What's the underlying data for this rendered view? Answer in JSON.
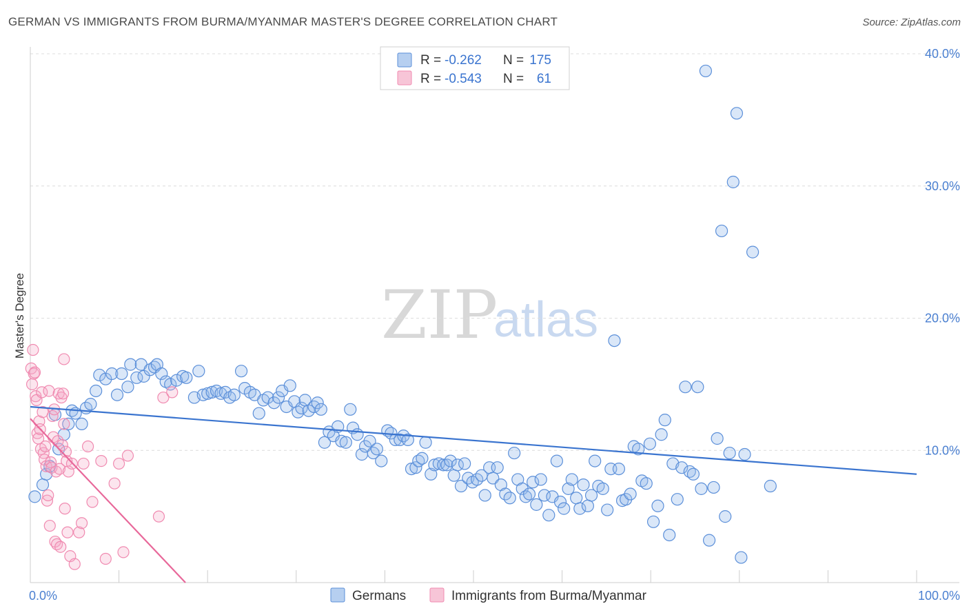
{
  "title": "GERMAN VS IMMIGRANTS FROM BURMA/MYANMAR MASTER'S DEGREE CORRELATION CHART",
  "source": "Source: ZipAtlas.com",
  "watermark": {
    "zip": "ZIP",
    "atlas": "atlas"
  },
  "legend": {
    "r_label": "R =",
    "n_label": "N =",
    "rows": [
      {
        "r": "-0.262",
        "n": "175"
      },
      {
        "r": "-0.543",
        "n": "61"
      }
    ]
  },
  "chart_data": {
    "type": "scatter",
    "title": "GERMAN VS IMMIGRANTS FROM BURMA/MYANMAR MASTER'S DEGREE CORRELATION CHART",
    "xlabel": "",
    "ylabel": "Master's Degree",
    "xlim": [
      0,
      100
    ],
    "ylim": [
      0,
      40
    ],
    "x_tick_labels": [
      "0.0%",
      "100.0%"
    ],
    "y_ticks": [
      10,
      20,
      30,
      40
    ],
    "y_tick_labels": [
      "10.0%",
      "20.0%",
      "30.0%",
      "40.0%"
    ],
    "grid": true,
    "legend_position": "top-center",
    "colors": {
      "germans": "#5b8fd9",
      "burma": "#f08ab0",
      "germans_line": "#3a74cf",
      "burma_line": "#e8689a"
    },
    "series": [
      {
        "name": "Germans",
        "r": -0.262,
        "n": 175,
        "trend": {
          "x": [
            0,
            100
          ],
          "y": [
            13.3,
            8.2
          ]
        },
        "points": [
          [
            0.5,
            6.5
          ],
          [
            1.4,
            7.4
          ],
          [
            1.8,
            8.2
          ],
          [
            2.2,
            8.8
          ],
          [
            2.8,
            12.7
          ],
          [
            3.2,
            10.1
          ],
          [
            3.8,
            11.2
          ],
          [
            4.3,
            12.0
          ],
          [
            4.7,
            13.0
          ],
          [
            5.1,
            12.8
          ],
          [
            5.8,
            12.0
          ],
          [
            6.3,
            13.2
          ],
          [
            6.8,
            13.5
          ],
          [
            7.4,
            14.5
          ],
          [
            7.8,
            15.7
          ],
          [
            8.5,
            15.4
          ],
          [
            9.2,
            15.8
          ],
          [
            9.8,
            14.2
          ],
          [
            10.3,
            15.8
          ],
          [
            11.0,
            14.8
          ],
          [
            11.3,
            16.5
          ],
          [
            12.0,
            15.5
          ],
          [
            12.5,
            16.5
          ],
          [
            12.8,
            15.6
          ],
          [
            13.5,
            16.1
          ],
          [
            14.0,
            16.3
          ],
          [
            14.3,
            16.5
          ],
          [
            14.8,
            15.8
          ],
          [
            15.3,
            15.2
          ],
          [
            15.8,
            15.0
          ],
          [
            16.5,
            15.3
          ],
          [
            17.2,
            15.6
          ],
          [
            17.6,
            15.5
          ],
          [
            18.5,
            14.0
          ],
          [
            19.0,
            16.0
          ],
          [
            19.5,
            14.2
          ],
          [
            20.0,
            14.3
          ],
          [
            20.5,
            14.4
          ],
          [
            21.0,
            14.5
          ],
          [
            21.5,
            14.3
          ],
          [
            22.0,
            14.4
          ],
          [
            22.5,
            14.0
          ],
          [
            23.0,
            14.2
          ],
          [
            23.8,
            16.0
          ],
          [
            24.2,
            14.7
          ],
          [
            24.8,
            14.4
          ],
          [
            25.3,
            14.2
          ],
          [
            25.8,
            12.8
          ],
          [
            26.3,
            13.8
          ],
          [
            26.8,
            14.0
          ],
          [
            27.5,
            13.6
          ],
          [
            28.0,
            14.0
          ],
          [
            28.4,
            14.5
          ],
          [
            28.9,
            13.3
          ],
          [
            29.3,
            14.9
          ],
          [
            29.8,
            13.7
          ],
          [
            30.2,
            12.9
          ],
          [
            30.6,
            13.2
          ],
          [
            31.0,
            13.8
          ],
          [
            31.4,
            13.0
          ],
          [
            32.0,
            13.3
          ],
          [
            32.4,
            13.6
          ],
          [
            32.8,
            13.1
          ],
          [
            33.2,
            10.6
          ],
          [
            33.7,
            11.4
          ],
          [
            34.2,
            11.1
          ],
          [
            34.7,
            11.8
          ],
          [
            35.1,
            10.7
          ],
          [
            35.6,
            10.6
          ],
          [
            36.1,
            13.1
          ],
          [
            36.4,
            11.7
          ],
          [
            36.9,
            11.2
          ],
          [
            37.4,
            9.7
          ],
          [
            37.8,
            10.3
          ],
          [
            38.3,
            10.7
          ],
          [
            38.7,
            9.8
          ],
          [
            39.1,
            10.1
          ],
          [
            39.6,
            9.2
          ],
          [
            40.3,
            11.5
          ],
          [
            40.7,
            11.3
          ],
          [
            41.2,
            10.8
          ],
          [
            41.7,
            10.8
          ],
          [
            42.1,
            11.1
          ],
          [
            42.6,
            10.8
          ],
          [
            43.0,
            8.6
          ],
          [
            43.5,
            8.7
          ],
          [
            43.8,
            9.2
          ],
          [
            44.2,
            9.4
          ],
          [
            44.6,
            10.6
          ],
          [
            45.2,
            8.2
          ],
          [
            45.6,
            8.9
          ],
          [
            46.1,
            9.0
          ],
          [
            46.6,
            8.9
          ],
          [
            47.0,
            8.9
          ],
          [
            47.4,
            9.2
          ],
          [
            47.8,
            8.1
          ],
          [
            48.2,
            8.9
          ],
          [
            48.6,
            7.3
          ],
          [
            49.0,
            9.0
          ],
          [
            49.4,
            7.9
          ],
          [
            49.9,
            7.6
          ],
          [
            50.4,
            7.8
          ],
          [
            50.9,
            8.1
          ],
          [
            51.3,
            6.6
          ],
          [
            51.8,
            8.7
          ],
          [
            52.2,
            7.9
          ],
          [
            52.7,
            8.7
          ],
          [
            53.1,
            7.4
          ],
          [
            53.6,
            6.7
          ],
          [
            54.1,
            6.4
          ],
          [
            54.6,
            9.8
          ],
          [
            55.0,
            7.8
          ],
          [
            55.5,
            7.1
          ],
          [
            55.9,
            6.5
          ],
          [
            56.3,
            6.7
          ],
          [
            56.7,
            7.6
          ],
          [
            57.1,
            5.9
          ],
          [
            57.6,
            7.8
          ],
          [
            58.0,
            6.6
          ],
          [
            58.5,
            5.1
          ],
          [
            58.9,
            6.5
          ],
          [
            59.4,
            9.2
          ],
          [
            59.8,
            6.1
          ],
          [
            60.2,
            5.6
          ],
          [
            60.7,
            7.1
          ],
          [
            61.1,
            7.8
          ],
          [
            61.6,
            6.4
          ],
          [
            62.0,
            5.6
          ],
          [
            62.4,
            7.4
          ],
          [
            62.9,
            5.8
          ],
          [
            63.3,
            6.6
          ],
          [
            63.7,
            9.2
          ],
          [
            64.1,
            7.3
          ],
          [
            64.6,
            7.1
          ],
          [
            65.1,
            5.5
          ],
          [
            65.5,
            8.6
          ],
          [
            65.9,
            18.3
          ],
          [
            66.4,
            8.6
          ],
          [
            66.8,
            6.2
          ],
          [
            67.2,
            6.3
          ],
          [
            67.7,
            6.7
          ],
          [
            68.1,
            10.3
          ],
          [
            68.6,
            10.1
          ],
          [
            69.0,
            7.7
          ],
          [
            69.5,
            7.5
          ],
          [
            69.9,
            10.5
          ],
          [
            70.3,
            4.6
          ],
          [
            70.8,
            5.8
          ],
          [
            71.2,
            11.2
          ],
          [
            71.6,
            12.3
          ],
          [
            72.1,
            3.6
          ],
          [
            72.5,
            9.0
          ],
          [
            73.0,
            6.3
          ],
          [
            73.5,
            8.7
          ],
          [
            73.9,
            14.8
          ],
          [
            74.4,
            8.4
          ],
          [
            74.8,
            8.2
          ],
          [
            75.3,
            14.8
          ],
          [
            75.7,
            7.1
          ],
          [
            76.2,
            38.7
          ],
          [
            76.6,
            3.2
          ],
          [
            77.1,
            7.2
          ],
          [
            77.5,
            10.9
          ],
          [
            78.0,
            26.6
          ],
          [
            78.4,
            5.0
          ],
          [
            78.9,
            9.8
          ],
          [
            79.3,
            30.3
          ],
          [
            79.7,
            35.5
          ],
          [
            80.2,
            1.9
          ],
          [
            80.6,
            9.7
          ],
          [
            81.5,
            25.0
          ],
          [
            83.5,
            7.3
          ]
        ]
      },
      {
        "name": "Immigrants from Burma/Myanmar",
        "r": -0.543,
        "n": 61,
        "trend": {
          "x": [
            0,
            17.5
          ],
          "y": [
            12.4,
            0
          ]
        },
        "points": [
          [
            0.1,
            16.2
          ],
          [
            0.2,
            15.0
          ],
          [
            0.3,
            17.6
          ],
          [
            0.4,
            15.8
          ],
          [
            0.5,
            15.9
          ],
          [
            0.6,
            14.1
          ],
          [
            0.7,
            13.8
          ],
          [
            0.8,
            11.3
          ],
          [
            0.9,
            10.9
          ],
          [
            1.0,
            12.2
          ],
          [
            1.1,
            11.6
          ],
          [
            1.2,
            10.1
          ],
          [
            1.3,
            14.4
          ],
          [
            1.4,
            12.9
          ],
          [
            1.5,
            9.8
          ],
          [
            1.6,
            9.3
          ],
          [
            1.7,
            10.3
          ],
          [
            1.8,
            8.8
          ],
          [
            1.9,
            6.2
          ],
          [
            2.0,
            6.6
          ],
          [
            2.1,
            14.5
          ],
          [
            2.2,
            4.3
          ],
          [
            2.3,
            9.1
          ],
          [
            2.4,
            8.7
          ],
          [
            2.5,
            12.6
          ],
          [
            2.6,
            11.0
          ],
          [
            2.7,
            13.1
          ],
          [
            2.8,
            3.1
          ],
          [
            2.9,
            8.4
          ],
          [
            3.0,
            2.9
          ],
          [
            3.1,
            10.7
          ],
          [
            3.2,
            14.3
          ],
          [
            3.3,
            8.6
          ],
          [
            3.4,
            2.7
          ],
          [
            3.5,
            14.0
          ],
          [
            3.6,
            10.4
          ],
          [
            3.7,
            14.3
          ],
          [
            3.8,
            16.9
          ],
          [
            3.9,
            5.6
          ],
          [
            4.0,
            9.9
          ],
          [
            4.1,
            9.2
          ],
          [
            4.2,
            3.8
          ],
          [
            4.3,
            8.4
          ],
          [
            4.5,
            2.0
          ],
          [
            4.7,
            9.0
          ],
          [
            5.0,
            1.4
          ],
          [
            5.5,
            3.8
          ],
          [
            5.8,
            4.5
          ],
          [
            6.5,
            10.3
          ],
          [
            7.0,
            6.1
          ],
          [
            8.0,
            9.2
          ],
          [
            8.5,
            1.8
          ],
          [
            9.5,
            7.5
          ],
          [
            10.0,
            9.0
          ],
          [
            10.5,
            2.3
          ],
          [
            11.0,
            9.6
          ],
          [
            14.5,
            5.0
          ],
          [
            15.0,
            14.0
          ],
          [
            16.0,
            14.4
          ],
          [
            3.8,
            12.0
          ],
          [
            6.0,
            9.0
          ]
        ]
      }
    ]
  }
}
